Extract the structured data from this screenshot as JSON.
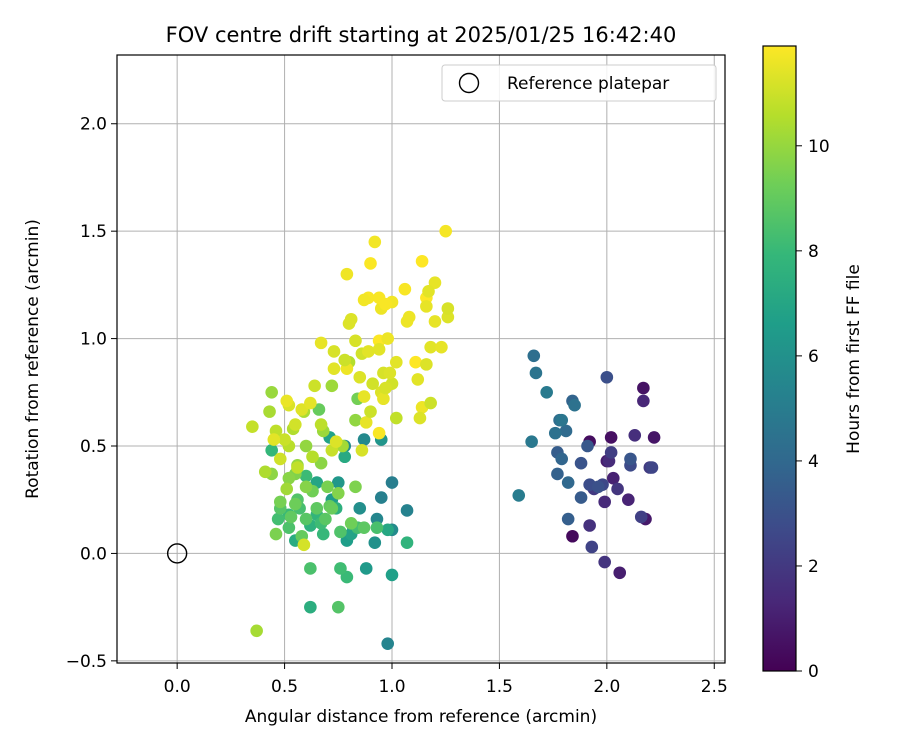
{
  "chart_data": {
    "type": "scatter",
    "title": "FOV centre drift starting at 2025/01/25 16:42:40",
    "xlabel": "Angular distance from reference (arcmin)",
    "ylabel": "Rotation from reference (arcmin)",
    "xlim": [
      -0.28,
      2.55
    ],
    "ylim": [
      -0.51,
      2.32
    ],
    "xticks": [
      0.0,
      0.5,
      1.0,
      1.5,
      2.0,
      2.5
    ],
    "xtick_labels": [
      "0.0",
      "0.5",
      "1.0",
      "1.5",
      "2.0",
      "2.5"
    ],
    "yticks": [
      -0.5,
      0.0,
      0.5,
      1.0,
      1.5,
      2.0
    ],
    "ytick_labels": [
      "−0.5",
      "0.0",
      "0.5",
      "1.0",
      "1.5",
      "2.0"
    ],
    "grid": true,
    "legend": {
      "placement": "top-right",
      "entries": [
        "Reference platepar"
      ]
    },
    "reference_point": {
      "label": "Reference platepar",
      "x": 0.0,
      "y": 0.0,
      "marker": "open-circle"
    },
    "colorbar": {
      "label": "Hours from first FF file",
      "min": 0,
      "max": 11.9,
      "ticks": [
        0,
        2,
        4,
        6,
        8,
        10
      ],
      "tick_labels": [
        "0",
        "2",
        "4",
        "6",
        "8",
        "10"
      ],
      "colormap": "viridis",
      "colors": [
        "#440154",
        "#482878",
        "#3e4989",
        "#31688e",
        "#26828e",
        "#1f9e89",
        "#35b779",
        "#6ece58",
        "#b5de2b",
        "#fde725"
      ]
    },
    "points": [
      [
        1.84,
        0.08,
        0.3
      ],
      [
        1.92,
        0.52,
        0.4
      ],
      [
        2.02,
        0.54,
        0.5
      ],
      [
        2.17,
        0.77,
        0.6
      ],
      [
        2.22,
        0.54,
        0.7
      ],
      [
        2.18,
        0.16,
        0.8
      ],
      [
        2.0,
        0.43,
        0.9
      ],
      [
        2.06,
        -0.09,
        1.0
      ],
      [
        2.03,
        0.35,
        1.1
      ],
      [
        2.1,
        0.25,
        1.2
      ],
      [
        2.17,
        0.71,
        1.3
      ],
      [
        1.99,
        0.24,
        1.4
      ],
      [
        2.01,
        0.43,
        1.5
      ],
      [
        2.13,
        0.55,
        1.6
      ],
      [
        1.92,
        0.13,
        1.7
      ],
      [
        1.99,
        -0.04,
        1.8
      ],
      [
        2.05,
        0.3,
        1.9
      ],
      [
        1.94,
        0.3,
        2.0
      ],
      [
        2.2,
        0.4,
        2.1
      ],
      [
        2.02,
        0.47,
        2.2
      ],
      [
        2.16,
        0.17,
        2.3
      ],
      [
        1.93,
        0.03,
        2.4
      ],
      [
        2.21,
        0.4,
        2.5
      ],
      [
        1.98,
        0.32,
        2.6
      ],
      [
        2.11,
        0.41,
        2.7
      ],
      [
        1.92,
        0.32,
        2.8
      ],
      [
        2.0,
        0.82,
        2.9
      ],
      [
        1.96,
        0.31,
        3.0
      ],
      [
        1.88,
        0.42,
        3.1
      ],
      [
        2.11,
        0.44,
        3.2
      ],
      [
        1.91,
        0.5,
        3.3
      ],
      [
        1.88,
        0.26,
        3.4
      ],
      [
        1.77,
        0.47,
        3.5
      ],
      [
        1.82,
        0.16,
        3.6
      ],
      [
        1.77,
        0.37,
        3.7
      ],
      [
        1.84,
        0.71,
        3.8
      ],
      [
        1.79,
        0.44,
        3.9
      ],
      [
        1.82,
        0.33,
        4.0
      ],
      [
        1.81,
        0.57,
        4.1
      ],
      [
        1.78,
        0.62,
        4.2
      ],
      [
        1.66,
        0.92,
        4.3
      ],
      [
        1.76,
        0.56,
        4.4
      ],
      [
        1.85,
        0.69,
        4.5
      ],
      [
        1.67,
        0.84,
        4.6
      ],
      [
        1.79,
        0.62,
        4.7
      ],
      [
        1.65,
        0.52,
        4.8
      ],
      [
        1.72,
        0.75,
        4.9
      ],
      [
        1.59,
        0.27,
        5.0
      ],
      [
        1.0,
        0.33,
        5.1
      ],
      [
        0.95,
        0.26,
        5.2
      ],
      [
        1.07,
        0.2,
        5.3
      ],
      [
        0.98,
        -0.42,
        5.4
      ],
      [
        0.93,
        0.16,
        5.5
      ],
      [
        0.87,
        0.53,
        5.6
      ],
      [
        1.0,
        0.11,
        5.7
      ],
      [
        0.78,
        0.5,
        5.8
      ],
      [
        0.85,
        0.21,
        5.9
      ],
      [
        0.92,
        0.05,
        6.0
      ],
      [
        0.82,
        0.12,
        6.1
      ],
      [
        0.95,
        0.53,
        6.2
      ],
      [
        0.75,
        0.33,
        6.3
      ],
      [
        0.88,
        -0.07,
        6.4
      ],
      [
        0.72,
        0.25,
        6.5
      ],
      [
        0.79,
        0.06,
        6.6
      ],
      [
        1.0,
        -0.1,
        6.7
      ],
      [
        0.71,
        0.54,
        6.8
      ],
      [
        0.81,
        0.09,
        6.9
      ],
      [
        0.65,
        0.33,
        7.0
      ],
      [
        0.98,
        0.11,
        7.1
      ],
      [
        0.78,
        0.45,
        7.2
      ],
      [
        0.55,
        0.06,
        7.3
      ],
      [
        0.62,
        -0.25,
        7.4
      ],
      [
        0.74,
        0.21,
        7.5
      ],
      [
        0.62,
        0.13,
        7.6
      ],
      [
        1.07,
        0.05,
        7.7
      ],
      [
        0.65,
        0.18,
        7.8
      ],
      [
        0.44,
        0.48,
        7.9
      ],
      [
        0.68,
        0.09,
        7.95
      ],
      [
        0.52,
        0.18,
        8.0
      ],
      [
        0.79,
        -0.11,
        8.05
      ],
      [
        0.6,
        0.36,
        8.1
      ],
      [
        0.67,
        0.14,
        8.15
      ],
      [
        0.76,
        -0.07,
        8.2
      ],
      [
        0.47,
        0.16,
        8.25
      ],
      [
        0.84,
        0.12,
        8.3
      ],
      [
        0.57,
        0.21,
        8.35
      ],
      [
        0.93,
        0.12,
        8.4
      ],
      [
        0.62,
        -0.07,
        8.45
      ],
      [
        0.52,
        0.12,
        8.5
      ],
      [
        0.76,
        0.1,
        8.55
      ],
      [
        0.56,
        0.25,
        8.6
      ],
      [
        0.75,
        -0.25,
        8.65
      ],
      [
        0.48,
        0.21,
        8.7
      ],
      [
        0.6,
        0.16,
        8.75
      ],
      [
        0.69,
        0.16,
        8.8
      ],
      [
        0.87,
        0.12,
        8.85
      ],
      [
        0.65,
        0.21,
        8.9
      ],
      [
        0.53,
        0.17,
        8.95
      ],
      [
        0.71,
        0.22,
        9.0
      ],
      [
        0.58,
        0.08,
        9.05
      ],
      [
        0.66,
        0.67,
        9.1
      ],
      [
        0.72,
        0.21,
        9.15
      ],
      [
        0.55,
        0.23,
        9.2
      ],
      [
        0.81,
        0.14,
        9.25
      ],
      [
        0.63,
        0.29,
        9.3
      ],
      [
        0.84,
        0.72,
        9.35
      ],
      [
        0.48,
        0.24,
        9.4
      ],
      [
        0.7,
        0.31,
        9.45
      ],
      [
        0.46,
        0.09,
        9.5
      ],
      [
        0.83,
        0.31,
        9.55
      ],
      [
        0.55,
        0.37,
        9.6
      ],
      [
        0.75,
        0.28,
        9.65
      ],
      [
        0.6,
        0.31,
        9.7
      ],
      [
        0.52,
        0.35,
        9.75
      ],
      [
        0.67,
        0.42,
        9.8
      ],
      [
        0.44,
        0.37,
        9.85
      ],
      [
        0.83,
        0.62,
        9.9
      ],
      [
        0.6,
        0.5,
        9.95
      ],
      [
        0.56,
        0.41,
        10.0
      ],
      [
        0.44,
        0.75,
        10.05
      ],
      [
        0.68,
        0.57,
        10.1
      ],
      [
        0.72,
        0.78,
        10.15
      ],
      [
        0.51,
        0.3,
        10.2
      ],
      [
        0.77,
        0.5,
        10.25
      ],
      [
        0.37,
        -0.36,
        10.3
      ],
      [
        0.43,
        0.66,
        10.35
      ],
      [
        0.59,
        0.66,
        10.4
      ],
      [
        0.41,
        0.38,
        10.45
      ],
      [
        0.54,
        0.58,
        10.5
      ],
      [
        0.8,
        0.89,
        10.55
      ],
      [
        0.63,
        0.45,
        10.6
      ],
      [
        0.52,
        0.5,
        10.65
      ],
      [
        0.67,
        0.6,
        10.7
      ],
      [
        0.46,
        0.57,
        10.75
      ],
      [
        0.56,
        0.4,
        10.8
      ],
      [
        0.35,
        0.59,
        10.85
      ],
      [
        0.72,
        0.48,
        10.9
      ],
      [
        0.5,
        0.53,
        10.95
      ],
      [
        0.64,
        0.78,
        11.0
      ],
      [
        0.48,
        0.44,
        11.05
      ],
      [
        0.55,
        0.6,
        11.1
      ],
      [
        0.59,
        0.04,
        11.15
      ],
      [
        0.86,
        0.48,
        11.2
      ],
      [
        0.52,
        0.69,
        11.25
      ],
      [
        0.74,
        0.52,
        11.3
      ],
      [
        0.58,
        0.67,
        11.35
      ],
      [
        0.45,
        0.53,
        11.4
      ],
      [
        0.62,
        0.7,
        11.45
      ],
      [
        0.88,
        0.61,
        11.5
      ],
      [
        0.51,
        0.71,
        11.55
      ],
      [
        0.79,
        0.86,
        11.6
      ],
      [
        0.79,
        1.3,
        11.65
      ],
      [
        0.92,
        1.45,
        11.7
      ],
      [
        1.25,
        1.5,
        11.75
      ],
      [
        1.06,
        1.23,
        11.8
      ],
      [
        0.9,
        1.35,
        11.85
      ],
      [
        0.94,
        0.99,
        11.88
      ],
      [
        1.14,
        1.36,
        11.9
      ],
      [
        1.16,
        1.19,
        11.9
      ],
      [
        1.11,
        0.89,
        11.9
      ]
    ],
    "extra_points_by_color_group": {
      "yellowgreen": [
        [
          0.8,
          1.07,
          11.3
        ],
        [
          0.81,
          1.09,
          11.3
        ],
        [
          0.83,
          0.99,
          11.2
        ],
        [
          0.86,
          0.93,
          11.1
        ],
        [
          0.78,
          0.9,
          11.0
        ],
        [
          0.89,
          0.94,
          11.4
        ],
        [
          0.85,
          0.82,
          11.3
        ],
        [
          0.94,
          0.95,
          11.4
        ],
        [
          0.96,
          0.84,
          11.2
        ],
        [
          0.98,
          1.0,
          11.6
        ],
        [
          0.87,
          0.73,
          11.5
        ],
        [
          0.95,
          0.75,
          11.3
        ],
        [
          1.0,
          0.79,
          11.1
        ],
        [
          1.02,
          0.89,
          11.4
        ],
        [
          0.96,
          0.72,
          11.5
        ],
        [
          0.94,
          0.56,
          11.8
        ],
        [
          0.9,
          0.66,
          11.0
        ],
        [
          1.02,
          0.63,
          10.8
        ],
        [
          0.97,
          0.77,
          11.2
        ],
        [
          1.14,
          0.68,
          11.6
        ],
        [
          1.12,
          0.81,
          11.4
        ],
        [
          1.18,
          0.7,
          11.0
        ],
        [
          1.13,
          0.63,
          11.3
        ],
        [
          1.16,
          0.88,
          11.3
        ],
        [
          1.18,
          0.96,
          11.4
        ],
        [
          1.23,
          0.96,
          11.5
        ],
        [
          1.2,
          1.08,
          11.5
        ],
        [
          1.26,
          1.1,
          11.3
        ],
        [
          1.26,
          1.14,
          11.2
        ],
        [
          1.2,
          1.26,
          11.5
        ],
        [
          1.17,
          1.22,
          11.4
        ],
        [
          1.16,
          1.15,
          11.5
        ],
        [
          1.07,
          1.08,
          11.6
        ],
        [
          1.08,
          1.1,
          11.6
        ],
        [
          1.0,
          1.17,
          11.7
        ],
        [
          0.95,
          1.14,
          11.6
        ],
        [
          0.89,
          1.19,
          11.8
        ],
        [
          0.87,
          1.18,
          11.7
        ],
        [
          0.94,
          1.19,
          11.8
        ],
        [
          0.97,
          1.16,
          11.8
        ],
        [
          0.91,
          0.79,
          11.1
        ],
        [
          0.99,
          0.84,
          11.3
        ],
        [
          0.73,
          0.94,
          11.2
        ],
        [
          0.67,
          0.98,
          11.5
        ],
        [
          0.73,
          0.86,
          11.4
        ]
      ]
    }
  }
}
